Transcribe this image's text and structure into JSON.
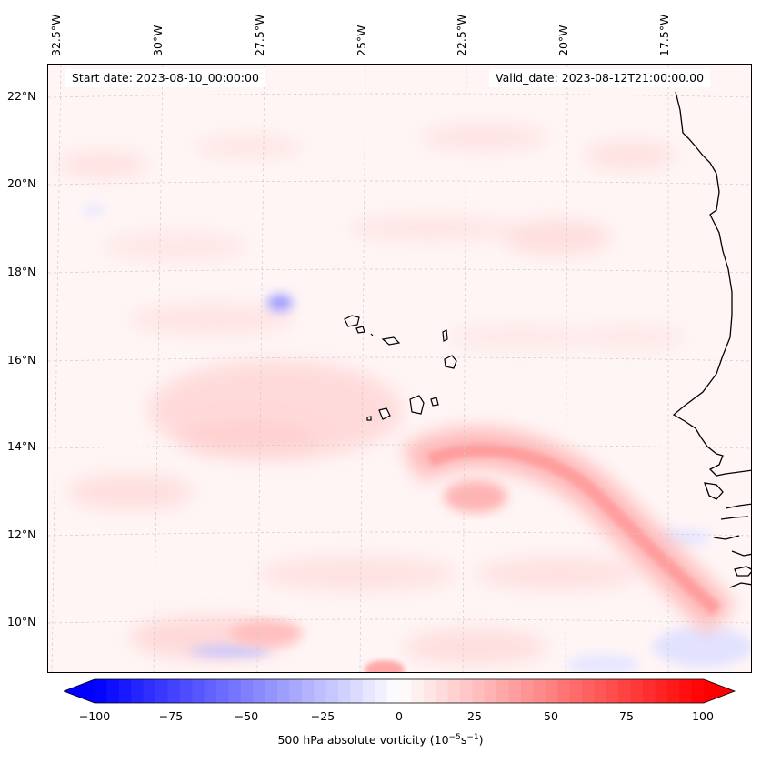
{
  "header": {
    "start_date": "Start date: 2023-08-10_00:00:00",
    "valid_date": "Valid_date: 2023-08-12T21:00:00.00"
  },
  "axes": {
    "lon_labels": [
      "32.5°W",
      "30°W",
      "27.5°W",
      "25°W",
      "22.5°W",
      "20°W",
      "17.5°W"
    ],
    "lat_labels": [
      "22°N",
      "20°N",
      "18°N",
      "16°N",
      "14°N",
      "12°N",
      "10°N"
    ]
  },
  "colorbar": {
    "ticks": [
      "−100",
      "−75",
      "−50",
      "−25",
      "0",
      "25",
      "50",
      "75",
      "100"
    ],
    "label_prefix": "500 hPa absolute vorticity (10",
    "label_exp1": "−5",
    "label_mid": "s",
    "label_exp2": "−1",
    "label_suffix": ")",
    "min": -100,
    "max": 100,
    "levels": 50
  },
  "colors": {
    "negative": "#0000ff",
    "positive": "#ff0000",
    "coastline": "#000000",
    "gridline": "#cccccc"
  },
  "map_features": [
    "coastline-west-africa",
    "cape-verde-islands",
    "vorticity-band"
  ]
}
